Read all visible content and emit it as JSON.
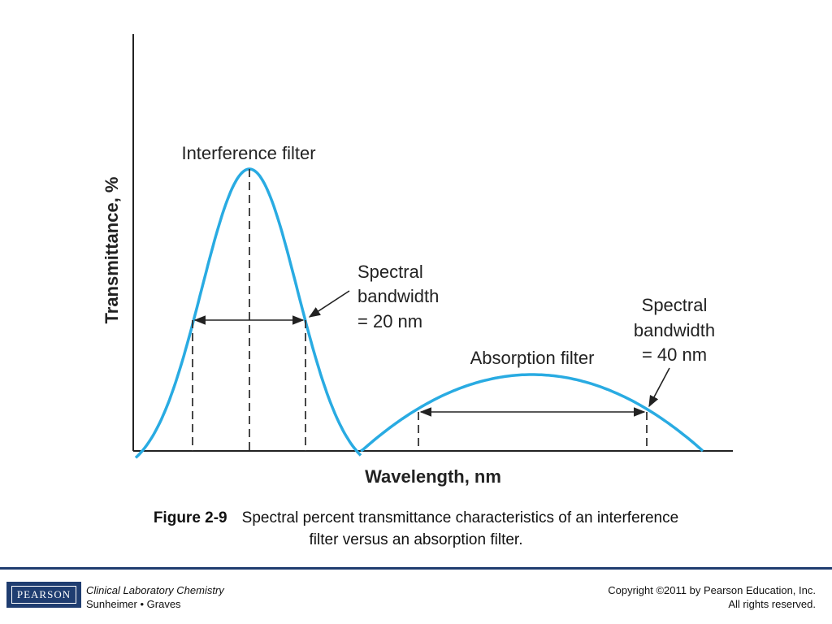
{
  "figure": {
    "y_axis_label": "Transmittance, %",
    "x_axis_label": "Wavelength, nm",
    "interference_label": "Interference filter",
    "interference_bw": [
      "Spectral",
      "bandwidth",
      "= 20 nm"
    ],
    "absorption_label": "Absorption filter",
    "absorption_bw": [
      "Spectral",
      "bandwidth",
      "= 40 nm"
    ]
  },
  "caption": {
    "label": "Figure 2-9",
    "line1": "Spectral percent transmittance characteristics of an interference",
    "line2": "filter versus an absorption filter."
  },
  "footer": {
    "logo_text": "PEARSON",
    "book_title": "Clinical Laboratory Chemistry",
    "authors": "Sunheimer • Graves",
    "copyright": "Copyright ©2011 by Pearson Education, Inc.",
    "rights": "All rights reserved."
  },
  "colors": {
    "curve": "#29abe2",
    "brand": "#1f3d70"
  }
}
